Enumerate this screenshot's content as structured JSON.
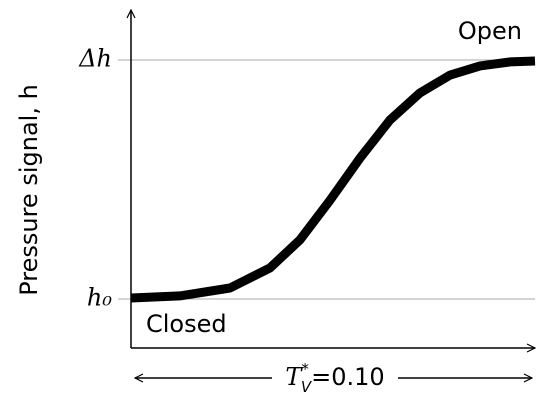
{
  "chart_data": {
    "type": "line",
    "ylabel": "Pressure signal, h",
    "x": [
      0,
      0.121,
      0.245,
      0.344,
      0.418,
      0.493,
      0.567,
      0.641,
      0.715,
      0.79,
      0.864,
      0.938,
      1.0
    ],
    "series": [
      {
        "color": "#000000",
        "values": [
          0.004,
          0.013,
          0.046,
          0.13,
          0.247,
          0.414,
          0.59,
          0.749,
          0.862,
          0.937,
          0.975,
          0.992,
          0.996
        ]
      }
    ],
    "xlim": [
      0,
      1
    ],
    "ylim": [
      -0.2,
      1.2
    ],
    "yticks": [
      {
        "value": 0,
        "label": "h₀"
      },
      {
        "value": 1,
        "label": "Δh"
      }
    ],
    "grid": true,
    "annotations": {
      "open": "Open",
      "closed": "Closed",
      "duration": {
        "symbol": "T",
        "sup": "*",
        "sub": "V",
        "text": "=0.10"
      }
    }
  }
}
